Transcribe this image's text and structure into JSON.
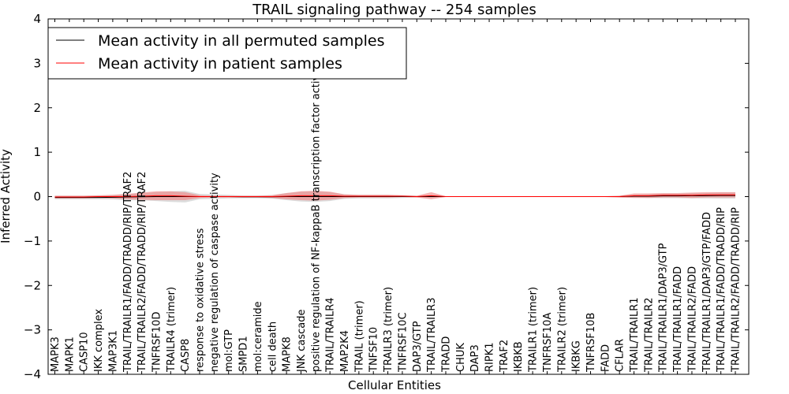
{
  "chart_data": {
    "type": "line",
    "title": "TRAIL signaling pathway -- 254 samples",
    "xlabel": "Cellular Entities",
    "ylabel": "Inferred Activity",
    "ylim": [
      -4,
      4
    ],
    "yticks": [
      -4,
      -3,
      -2,
      -1,
      0,
      1,
      2,
      3,
      4
    ],
    "ytick_labels": [
      "−4",
      "−3",
      "−2",
      "−1",
      "0",
      "1",
      "2",
      "3",
      "4"
    ],
    "grid": false,
    "legend_position": "top-left",
    "categories": [
      "MAPK3",
      "MAPK1",
      "CASP10",
      "IKK complex",
      "MAP3K1",
      "TRAIL/TRAILR1/FADD/TRADD/RIP/TRAF2",
      "TRAIL/TRAILR2/FADD/TRADD/RIP/TRAF2",
      "TNFRSF10D",
      "TRAILR4 (trimer)",
      "CASP8",
      "response to oxidative stress",
      "negative regulation of caspase activity",
      "mol:GTP",
      "SMPD1",
      "mol:ceramide",
      "cell death",
      "MAPK8",
      "JNK cascade",
      "positive regulation of NF-kappaB transcription factor activity",
      "TRAIL/TRAILR4",
      "MAP2K4",
      "TRAIL (trimer)",
      "TNFSF10",
      "TRAILR3 (trimer)",
      "TNFRSF10C",
      "DAP3/GTP",
      "TRAIL/TRAILR3",
      "TRADD",
      "CHUK",
      "DAP3",
      "RIPK1",
      "TRAF2",
      "IKBKB",
      "TRAILR1 (trimer)",
      "TNFRSF10A",
      "TRAILR2 (trimer)",
      "IKBKG",
      "TNFRSF10B",
      "FADD",
      "CFLAR",
      "TRAIL/TRAILR1",
      "TRAIL/TRAILR2",
      "TRAIL/TRAILR1/DAP3/GTP",
      "TRAIL/TRAILR1/FADD",
      "TRAIL/TRAILR2/FADD",
      "TRAIL/TRAILR1/DAP3/GTP/FADD",
      "TRAIL/TRAILR1/FADD/TRADD/RIP",
      "TRAIL/TRAILR2/FADD/TRADD/RIP"
    ],
    "series": [
      {
        "name": "Mean activity in all permuted samples",
        "color": "#000000",
        "band_color": "#bfbfbf",
        "values": [
          -0.02,
          -0.02,
          -0.02,
          -0.02,
          -0.015,
          -0.01,
          -0.005,
          0.0,
          0.0,
          0.0,
          0.0,
          0.0,
          0.0,
          -0.005,
          -0.005,
          -0.005,
          0.0,
          0.0,
          0.0,
          0.0,
          0.0,
          0.0,
          0.0,
          0.0,
          0.0,
          0.0,
          0.0,
          0.0,
          0.0,
          0.0,
          0.0,
          0.0,
          0.0,
          0.0,
          0.0,
          0.0,
          0.0,
          0.0,
          0.0,
          0.0,
          0.01,
          0.01,
          0.015,
          0.015,
          0.02,
          0.02,
          0.025,
          0.025
        ],
        "band": [
          0.04,
          0.04,
          0.04,
          0.04,
          0.05,
          0.07,
          0.08,
          0.1,
          0.12,
          0.13,
          0.06,
          0.05,
          0.04,
          0.03,
          0.03,
          0.04,
          0.08,
          0.11,
          0.12,
          0.1,
          0.05,
          0.04,
          0.04,
          0.04,
          0.03,
          0.02,
          0.02,
          0.01,
          0.01,
          0.01,
          0.01,
          0.01,
          0.01,
          0.01,
          0.01,
          0.01,
          0.01,
          0.01,
          0.01,
          0.02,
          0.03,
          0.04,
          0.05,
          0.05,
          0.06,
          0.06,
          0.07,
          0.07
        ]
      },
      {
        "name": "Mean activity in patient samples",
        "color": "#ff0000",
        "band_color": "#f08080",
        "values": [
          -0.01,
          -0.01,
          -0.01,
          0.0,
          0.0,
          0.0,
          0.01,
          0.02,
          0.02,
          0.01,
          0.0,
          0.0,
          0.0,
          0.0,
          0.0,
          0.0,
          0.01,
          0.02,
          0.02,
          0.02,
          0.01,
          0.01,
          0.01,
          0.01,
          0.01,
          0.0,
          0.02,
          0.0,
          0.0,
          0.0,
          0.0,
          0.0,
          0.0,
          0.0,
          0.0,
          0.0,
          0.0,
          0.0,
          0.0,
          0.0,
          0.02,
          0.02,
          0.03,
          0.03,
          0.03,
          0.04,
          0.04,
          0.04
        ],
        "band": [
          0.03,
          0.03,
          0.03,
          0.03,
          0.04,
          0.06,
          0.08,
          0.1,
          0.1,
          0.09,
          0.03,
          0.02,
          0.02,
          0.02,
          0.02,
          0.03,
          0.07,
          0.1,
          0.11,
          0.09,
          0.04,
          0.03,
          0.03,
          0.03,
          0.02,
          0.02,
          0.08,
          0.01,
          0.01,
          0.01,
          0.01,
          0.01,
          0.01,
          0.01,
          0.01,
          0.01,
          0.01,
          0.01,
          0.01,
          0.02,
          0.05,
          0.05,
          0.05,
          0.05,
          0.06,
          0.06,
          0.06,
          0.06
        ]
      }
    ]
  }
}
